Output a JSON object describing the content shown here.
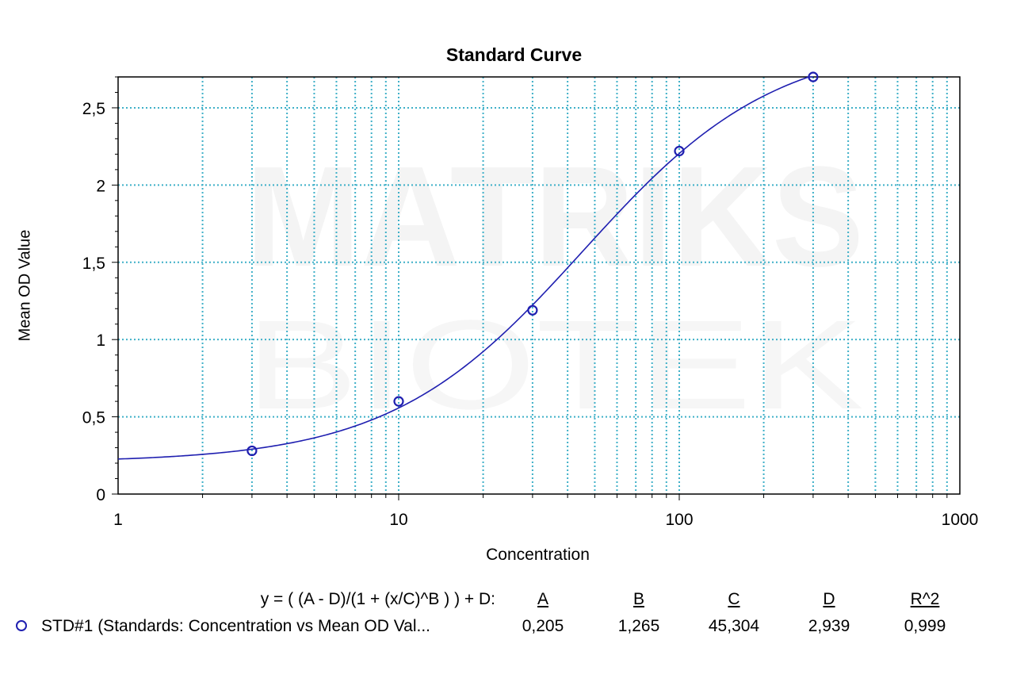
{
  "chart_data": {
    "type": "scatter",
    "title": "Standard Curve",
    "xlabel": "Concentration",
    "ylabel": "Mean OD Value",
    "x_scale": "log",
    "xlim": [
      1,
      1000
    ],
    "ylim": [
      0,
      2.7
    ],
    "x_tick_labels": [
      "1",
      "10",
      "100",
      "1000"
    ],
    "y_tick_labels": [
      "0",
      "0,5",
      "1",
      "1,5",
      "2",
      "2,5"
    ],
    "grid": true,
    "grid_color": "#3fb0c8",
    "series": [
      {
        "name": "STD#1 (Standards: Concentration vs Mean OD Val...",
        "color": "#1f1fb0",
        "points": [
          {
            "x": 3,
            "y": 0.28
          },
          {
            "x": 10,
            "y": 0.6
          },
          {
            "x": 30,
            "y": 1.19
          },
          {
            "x": 100,
            "y": 2.22
          },
          {
            "x": 300,
            "y": 2.7
          }
        ]
      }
    ],
    "fit": {
      "equation": "y = ( (A - D)/(1 + (x/C)^B ) ) + D:",
      "param_names": [
        "A",
        "B",
        "C",
        "D",
        "R^2"
      ],
      "param_values": [
        "0,205",
        "1,265",
        "45,304",
        "2,939",
        "0,999"
      ],
      "A": 0.205,
      "B": 1.265,
      "C": 45.304,
      "D": 2.939
    },
    "watermark": [
      "MATRIKS",
      "BIOTEK"
    ]
  }
}
